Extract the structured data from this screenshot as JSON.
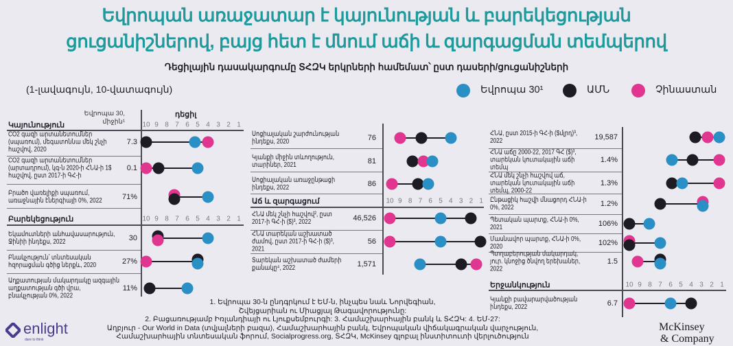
{
  "header": {
    "title_line1": "Եվրոպան առաջատար է կայունության և բարեկեցության",
    "title_line2": "ցուցանիշներով, բայց հետ է մնում աճի և զարգացման տեմպերով",
    "subtitle": "Դեցիլային դասակարգումը ՏՀԶԿ երկրների համեմատ՝ ըստ դասերի/ցուցանիշների",
    "scale_note": "(1-լավագույն, 10-վատագույն)"
  },
  "legend": [
    {
      "key": "eu",
      "label": "Եվրոպա 30¹",
      "color": "#2a8fc4"
    },
    {
      "key": "us",
      "label": "ԱՄՆ",
      "color": "#1d1b24"
    },
    {
      "key": "cn",
      "label": "Չինաստան",
      "color": "#e0368f"
    }
  ],
  "column_headers": {
    "avg": "Եվրոպա 30, միջին¹",
    "decile": "դեցիլ"
  },
  "chart_data": {
    "type": "dumbbell",
    "axis": {
      "label": "դեցիլ",
      "ticks": [
        "10",
        "9",
        "8",
        "7",
        "6",
        "5",
        "4",
        "3",
        "2",
        "1"
      ],
      "range": [
        10,
        1
      ]
    },
    "panels": [
      {
        "sections": [
          {
            "title": "Կայունություն",
            "rows": [
              {
                "label": "CO2 գազի արտանետումներ (սպառում), մեգատոննա մեկ շնչի հաշվով, 2020",
                "value": "7.3",
                "deciles": {
                  "us": 10,
                  "eu": 5.3,
                  "cn": 4
                }
              },
              {
                "label": "CO2 գազի արտանետումներ (արտադրում), կգ-ն 2020-ի ՀՆԱ-ի 1$ հաշվով, ըստ 2017-ի ԳՀ-ի",
                "value": "0.1",
                "deciles": {
                  "cn": 10,
                  "us": 8.8,
                  "eu": 5
                }
              },
              {
                "label": "Բրածո վառելիքի սպառում, առաջնային էներգիայի 0%, 2022",
                "value": "71%",
                "deciles": {
                  "cn": 7.3,
                  "us": 7.3,
                  "eu": 4
                }
              }
            ]
          },
          {
            "title": "Բարեկեցություն",
            "rows": [
              {
                "label": "Եկամուտների անհավասարություն, Ջինիի ինդեքս, 2022",
                "value": "30",
                "deciles": {
                  "us": 8.9,
                  "cn": 8.9,
                  "eu": 4
                }
              },
              {
                "label": "Բնակչություն՝ տնտեսական հզորացման գծից ներքև, 2020",
                "value": "27%",
                "deciles": {
                  "cn": 10,
                  "us": 5,
                  "eu": 5
                }
              },
              {
                "label": "Աղքատության մակարդակը ազգային աղքատության գծի վրա, բնակչության 0%, 2022",
                "value": "11%",
                "deciles": {
                  "us": 9.7,
                  "eu": 6
                }
              }
            ]
          }
        ]
      },
      {
        "sections": [
          {
            "title": "",
            "rows": [
              {
                "label": "Սոցիալական շարժունության ինդեքս, 2020",
                "value": "76",
                "deciles": {
                  "cn": 9,
                  "us": 6.9,
                  "eu": 4
                }
              },
              {
                "label": "Կյանքի միջին տևողություն, տարիներ, 2021",
                "value": "81",
                "deciles": {
                  "us": 7.8,
                  "cn": 6.7,
                  "eu": 5.8
                }
              },
              {
                "label": "Սոցիալական առաջընթացի ինդեքս, 2022",
                "value": "86",
                "deciles": {
                  "cn": 9.8,
                  "us": 7.2,
                  "eu": 6.2
                }
              }
            ]
          },
          {
            "title": "Աճ և զարգացում",
            "rows": [
              {
                "label": "ՀՆԱ մեկ շնչի հաշվով², ըստ 2017-ի ԳՀ-ի ($)³, 2022",
                "value": "46,526",
                "deciles": {
                  "cn": 10,
                  "eu": 5,
                  "us": 2
                }
              },
              {
                "label": "ՀՆԱ տարեկան աշխատած ժամով, ըստ 2017-ի ԳՀ-ի ($)³, 2021",
                "value": "56",
                "deciles": {
                  "cn": 10,
                  "eu": 5,
                  "us": 1.1
                }
              },
              {
                "label": "Տարեկան աշխատած ժամերի քանակը⁴, 2022",
                "value": "1,571",
                "deciles": {
                  "eu": 7,
                  "us": 3,
                  "cn": 1.5
                }
              }
            ]
          }
        ]
      },
      {
        "sections": [
          {
            "title": "",
            "rows": [
              {
                "label": "ՀՆԱ, ըստ 2015-ի ԳՀ-ի ($մլրդ)³, 2022",
                "value": "19,587",
                "deciles": {
                  "us": 3.6,
                  "cn": 2.4,
                  "eu": 1.3
                }
              },
              {
                "label": "ՀՆԱ աճը 2000-22, 2017 ԳՀ ($)³, տարեկան կուտակային աճի տեմպ",
                "value": "1.4%",
                "deciles": {
                  "eu": 5.9,
                  "us": 3.9,
                  "cn": 1.3
                }
              },
              {
                "label": "ՀՆԱ մեկ շնչի հաշվով աճ, տարեկան կուտակային աճի տեմպ, 2000-22",
                "value": "1.3%",
                "deciles": {
                  "us": 5.9,
                  "eu": 4.9,
                  "cn": 1.3
                }
              },
              {
                "label": "Ընթացիկ հաշվի մնացորդ ՀՆԱ-ի 0%, 2022",
                "value": "1.2%",
                "deciles": {
                  "us": 7,
                  "cn": 2.9,
                  "eu": 2.9
                }
              },
              {
                "label": "Պետական պարտք, ՀՆԱ-ի 0%, 2021",
                "value": "106%",
                "deciles": {
                  "us": 10,
                  "eu": 8.1
                }
              },
              {
                "label": "Մասնավոր պարտք, ՀՆԱ-ի 0%, 2020",
                "value": "102%",
                "deciles": {
                  "cn": 10,
                  "us": 10,
                  "eu": 7
                }
              },
              {
                "label": "Պտղաբերության մակարդակ, յուր. կնոջից ծնվող երեխաներ, 2022",
                "value": "1.5",
                "deciles": {
                  "cn": 9.2,
                  "us": 7,
                  "eu": 7
                }
              }
            ]
          },
          {
            "title": "Երջանկություն",
            "rows": [
              {
                "label": "Կյանքի բավարարվածության ինդեքս, 2022",
                "value": "6.7",
                "deciles": {
                  "cn": 10,
                  "eu": 6,
                  "us": 4
                }
              }
            ]
          }
        ]
      }
    ]
  },
  "footnotes": [
    "1. Եվրոպա 30-ն ընդգրկում է ԵՄ-ն, ինչպես նաև Նորվեգիան,",
    "Շվեյցարիան ու Միացյալ Թագավորությունը:",
    "2. Բացառությամբ Իռլանդիայի ու Լյուքսեմբուրգի: 3. Համաշխարհային բանկ և ՏՀԶԿ: 4. ԵՄ-27:",
    "Աղբյուր - Our World in Data (տվյալների բազա), Համաշխարհային բանկ, Եվրոպական վիճակագրական վարչություն,",
    "Համաշխարհային տնտեսական ֆորում, Socialprogress.org, ՏՀԶԿ, McKinsey գլոբալ ինստիտուտի վերլուծություն"
  ],
  "logos": {
    "enlight": "enlight",
    "enlight_tagline": "dare to think",
    "mckinsey_line1": "McKinsey",
    "mckinsey_line2": "& Company"
  }
}
